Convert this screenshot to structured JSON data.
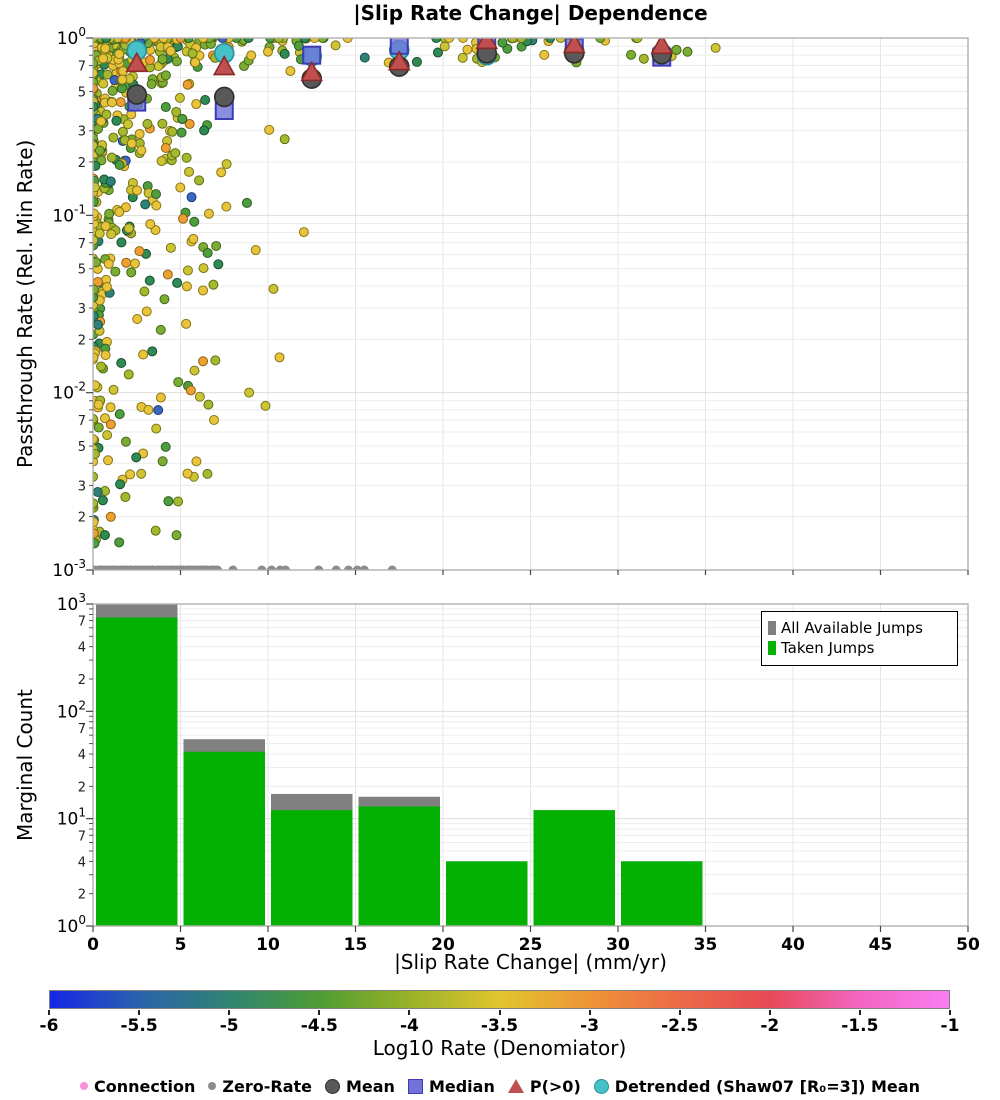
{
  "chart_data": [
    {
      "type": "scatter",
      "title": "|Slip Rate Change| Dependence",
      "ylabel": "Passthrough Rate (Rel. Min Rate)",
      "xlim": [
        0,
        50
      ],
      "ylim": [
        0.001,
        1
      ],
      "yscale": "log",
      "grid": true,
      "ytick_major_exponents": [
        0,
        -1,
        -2,
        -3
      ],
      "ytick_minor_labeled": [
        7,
        5,
        3,
        2
      ],
      "bin_centers": [
        2.5,
        7.5,
        12.5,
        17.5,
        22.5,
        27.5,
        32.5
      ],
      "summary_series": [
        {
          "name": "Detrended (Shaw07 [R₀=3]) Mean",
          "marker": "circle",
          "fill": "#45c2c8",
          "edge": "#2a8f96",
          "values": [
            0.85,
            0.82,
            0.79,
            0.855,
            0.8,
            0.84,
            0.82
          ]
        },
        {
          "name": "Median",
          "marker": "square",
          "fill": "#7272d8",
          "edge": "#3c3cb4",
          "values": [
            0.435,
            0.39,
            0.8,
            0.91,
            0.93,
            0.89,
            0.78
          ]
        },
        {
          "name": "Mean",
          "marker": "circle",
          "fill": "#595959",
          "edge": "#2e2e2e",
          "values": [
            0.48,
            0.465,
            0.59,
            0.69,
            0.82,
            0.82,
            0.81
          ]
        },
        {
          "name": "P(>0)",
          "marker": "triangle",
          "fill": "#c05050",
          "edge": "#8c2a28",
          "values": [
            0.72,
            0.69,
            0.64,
            0.735,
            0.97,
            0.92,
            0.91
          ]
        }
      ],
      "zero_rate": {
        "name": "Zero-Rate",
        "y": 0.001,
        "color": "#8b8b8b",
        "band": {
          "from": 0,
          "to": 7.1,
          "count": 58
        },
        "sparse_x": [
          8.0,
          9.65,
          10.2,
          10.7,
          11.0,
          12.9,
          13.9,
          14.6,
          15.1,
          15.5,
          17.1
        ]
      },
      "points": {
        "note": "dense colormapped connection-rate scatter; color = Log10 Rate (Denomiator)",
        "seed": 1337,
        "radius": 4.5,
        "palette": [
          {
            "fill": "#e7c43a",
            "edge": "#8a7417",
            "w": 0.24
          },
          {
            "fill": "#cdc433",
            "edge": "#77741a",
            "w": 0.13
          },
          {
            "fill": "#a6b92e",
            "edge": "#5f6e14",
            "w": 0.16
          },
          {
            "fill": "#7cad33",
            "edge": "#44671a",
            "w": 0.15
          },
          {
            "fill": "#4f9e3e",
            "edge": "#2a5e20",
            "w": 0.12
          },
          {
            "fill": "#2f8a53",
            "edge": "#174f2c",
            "w": 0.08
          },
          {
            "fill": "#2e8173",
            "edge": "#14524a",
            "w": 0.04
          },
          {
            "fill": "#eca032",
            "edge": "#936010",
            "w": 0.06
          },
          {
            "fill": "#3b67c0",
            "edge": "#1c3a78",
            "w": 0.02
          }
        ],
        "clusters": [
          {
            "n": 400,
            "xbase": 0,
            "xscale": 7,
            "xpow": 3.2,
            "yexpscale": -2.85,
            "yexppow": 2.0
          },
          {
            "n": 110,
            "xbase": 1.5,
            "xscale": 11,
            "xpow": 1.7,
            "yexpscale": -2.3,
            "yexppow": 2.6
          },
          {
            "n": 70,
            "xbase": 0,
            "xscale": 36,
            "xpow": 1.4,
            "yexpscale": -0.14,
            "yexppow": 1.0
          },
          {
            "n": 45,
            "xbase": 0,
            "xscale": 36,
            "xpow": 1.3,
            "yexpscale": 0.0,
            "yexppow": 1.0
          }
        ]
      }
    },
    {
      "type": "bar",
      "ylabel": "Marginal Count",
      "xlabel": "|Slip Rate Change| (mm/yr)",
      "yscale": "log",
      "ylim": [
        1,
        1000
      ],
      "grid": true,
      "ytick_major_exponents": [
        3,
        2,
        1,
        0
      ],
      "ytick_minor_labeled": [
        7,
        4,
        2
      ],
      "xticks": [
        0,
        5,
        10,
        15,
        20,
        25,
        30,
        35,
        40,
        45,
        50
      ],
      "bins": [
        [
          0,
          5
        ],
        [
          5,
          10
        ],
        [
          10,
          15
        ],
        [
          15,
          20
        ],
        [
          20,
          25
        ],
        [
          25,
          30
        ],
        [
          30,
          35
        ]
      ],
      "series": [
        {
          "name": "All Available Jumps",
          "color": "#808080",
          "values": [
            1000,
            55,
            17,
            16,
            4,
            12,
            4
          ]
        },
        {
          "name": "Taken Jumps",
          "color": "#02b102",
          "values": [
            750,
            42,
            12,
            13,
            4,
            12,
            4
          ]
        }
      ],
      "legend_position": "upper right"
    },
    {
      "type": "colorbar",
      "label": "Log10 Rate (Denomiator)",
      "min": -6,
      "max": -1,
      "ticks": [
        "-6",
        "-5.5",
        "-5",
        "-4.5",
        "-4",
        "-3.5",
        "-3",
        "-2.5",
        "-2",
        "-1.5",
        "-1"
      ],
      "stops": [
        {
          "pos": 0,
          "color": "#1527e6"
        },
        {
          "pos": 10,
          "color": "#2a63ab"
        },
        {
          "pos": 20,
          "color": "#2f8472"
        },
        {
          "pos": 30,
          "color": "#4f9c34"
        },
        {
          "pos": 40,
          "color": "#99b227"
        },
        {
          "pos": 50,
          "color": "#e2c52e"
        },
        {
          "pos": 60,
          "color": "#ee9437"
        },
        {
          "pos": 70,
          "color": "#ec6a46"
        },
        {
          "pos": 80,
          "color": "#e84a55"
        },
        {
          "pos": 90,
          "color": "#f266c1"
        },
        {
          "pos": 100,
          "color": "#fa7cf2"
        }
      ]
    }
  ],
  "marker_legend": [
    {
      "label": "Connection",
      "marker": "dot",
      "color": "#fb8fd8",
      "edge": "#d76ab5"
    },
    {
      "label": "Zero-Rate",
      "marker": "dot",
      "color": "#8b8b8b",
      "edge": "#6e6e6e"
    },
    {
      "label": "Mean",
      "marker": "circle",
      "color": "#595959",
      "edge": "#2e2e2e"
    },
    {
      "label": "Median",
      "marker": "square",
      "color": "#7272d8",
      "edge": "#3c3cb4"
    },
    {
      "label": "P(>0)",
      "marker": "triangle",
      "color": "#c05050",
      "edge": "#8c2a28"
    },
    {
      "label": "Detrended (Shaw07 [R₀=3]) Mean",
      "marker": "circle",
      "color": "#45c2c8",
      "edge": "#2a8f96"
    }
  ]
}
